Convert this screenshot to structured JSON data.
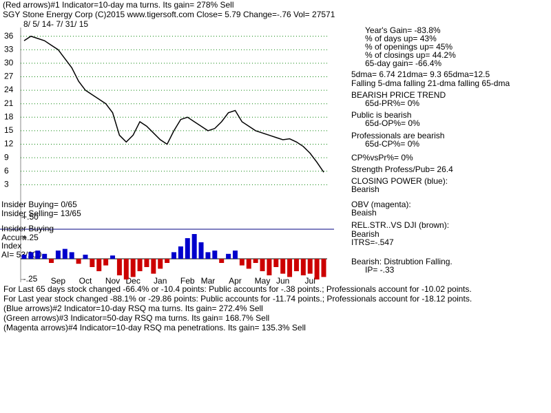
{
  "header": {
    "line1": "(Red arrows)#1 Indicator=10-day ma turns. Its gain= 278% Sell",
    "line2": "SGY   Stone Energy Corp  (C)2015 www.tigersoft.com    Close=  5.79  Change=-.76 Vol= 27571",
    "dates": "8/ 5/ 14- 7/ 31/ 15"
  },
  "right_panel": [
    "Year's Gain= -83.8%",
    "% of days up= 43%",
    "% of openings up= 45%",
    "% of closings up= 44.2%",
    "65-day gain= -66.4%",
    "5dma= 6.74 21dma= 9.3 65dma=12.5",
    "Falling 5-dma  falling 21-dma  falling 65-dma",
    "BEARISH PRICE TREND",
    "65d-PR%= 0%",
    "Public is bearish",
    "65d-OP%= 0%",
    "Professionals are bearish",
    "65d-CP%= 0%",
    "CP%vsPr%=  0%",
    "Strength Profess/Pub= 26.4",
    "CLOSING POWER (blue):",
    "Bearish",
    "OBV (magenta):",
    "Beaish",
    "REL.STR..VS DJI (brown):",
    "Bearish",
    "ITRS=-.547",
    "Bearish: Distrubtion Falling.",
    "IP= -.33"
  ],
  "left_panel": [
    "Insider Buying= 0/65",
    "Insider Selling= 13/65",
    "Insider Buying",
    "Accum",
    "Index",
    "AI= 53/200"
  ],
  "footer": [
    "For Last 65 days stock changed -66.4% or -10.4 points:  Public accounts for -.38 points.;  Professionals account for -10.02 points.",
    "For Last year stock changed -88.1% or -29.86 points:  Public accounts for -11.74 points.;  Professionals account for -18.12 points.",
    "(Blue arrows)#2 Indicator=10-day RSQ ma turns. Its gain= 272.4% Sell",
    "(Green arrows)#3 Indicator=50-day RSQ ma turns. Its gain= 168.7% Sell",
    "(Magenta arrows)#4 Indicator=10-day RSQ ma penetrations. Its gain= 135.3% Sell"
  ],
  "chart_data": {
    "type": "line",
    "categories": [
      null,
      null,
      null,
      null,
      null,
      "Sep",
      null,
      null,
      null,
      "Oct",
      null,
      null,
      null,
      "Nov",
      null,
      null,
      "Dec",
      null,
      null,
      null,
      "Jan",
      null,
      null,
      null,
      "Feb",
      null,
      null,
      "Mar",
      null,
      null,
      null,
      "Apr",
      null,
      null,
      null,
      "May",
      null,
      null,
      "Jun",
      null,
      null,
      null,
      "Jul",
      null,
      null
    ],
    "series": [
      {
        "color": "#000000",
        "values": [
          35,
          36,
          35.5,
          35,
          34,
          33,
          31,
          29,
          26,
          24,
          23,
          22,
          21,
          19,
          14,
          12.5,
          14,
          17,
          16,
          14.5,
          13,
          12,
          15,
          17.5,
          18,
          17,
          16,
          15,
          15.5,
          17,
          19,
          19.5,
          17,
          16,
          15,
          14.5,
          14,
          13.5,
          13,
          13.2,
          12.5,
          11.5,
          10,
          8,
          5.79
        ]
      },
      {
        "axis": "y2",
        "positive_color": "#0000cc",
        "negative_color": "#cc0000",
        "values": [
          0.05,
          0.08,
          0.1,
          0.06,
          -0.05,
          0.1,
          0.12,
          0.08,
          -0.06,
          0.05,
          -0.1,
          -0.15,
          -0.08,
          0.04,
          -0.2,
          -0.25,
          -0.22,
          -0.15,
          -0.1,
          -0.18,
          -0.12,
          -0.05,
          0.08,
          0.15,
          0.25,
          0.3,
          0.2,
          0.08,
          0.1,
          -0.05,
          0.06,
          0.1,
          -0.08,
          -0.12,
          -0.05,
          -0.15,
          -0.2,
          -0.1,
          -0.18,
          -0.22,
          -0.15,
          -0.2,
          -0.18,
          -0.25,
          -0.22
        ]
      }
    ],
    "ylim": [
      0,
      39
    ],
    "yticks": [
      3,
      6,
      9,
      12,
      15,
      18,
      21,
      24,
      27,
      30,
      33,
      36
    ],
    "grid": true,
    "grid_color": "#008000",
    "y2lim": [
      -0.3,
      0.5
    ],
    "y2ticks": [
      {
        "value": 0.5,
        "label": "+.50"
      },
      {
        "value": 0.25,
        "label": "+.25"
      },
      {
        "value": -0.25,
        "label": "-.25"
      }
    ]
  }
}
